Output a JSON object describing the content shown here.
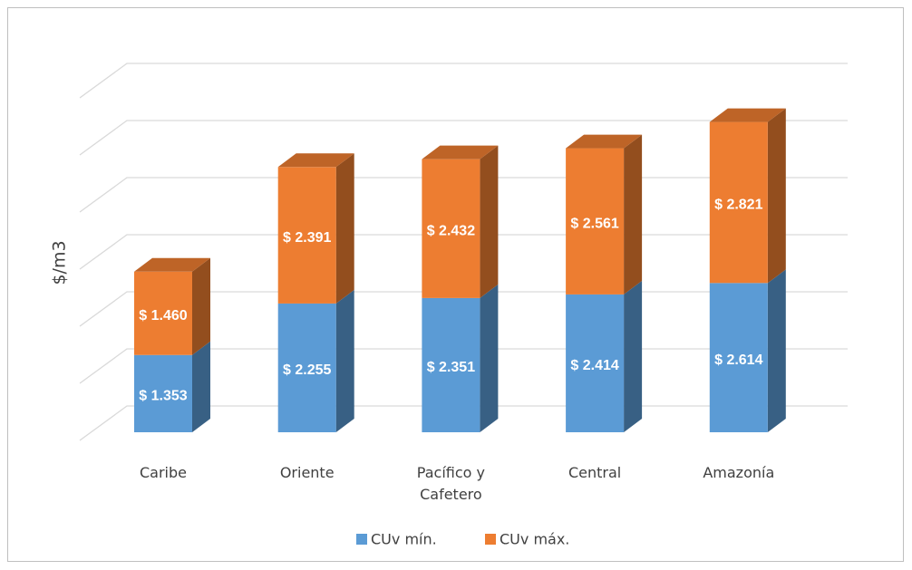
{
  "chart_data": {
    "type": "bar3d_stacked",
    "y_label": "$/m3",
    "categories": [
      "Caribe",
      "Oriente",
      "Pacífico y Cafetero",
      "Central",
      "Amazonía"
    ],
    "series": [
      {
        "name": "CUv mín.",
        "color": "#5b9bd5",
        "values": [
          1353,
          2255,
          2351,
          2414,
          2614
        ],
        "value_labels": [
          "$ 1.353",
          "$ 2.255",
          "$ 2.351",
          "$ 2.414",
          "$ 2.614"
        ]
      },
      {
        "name": "CUv máx.",
        "color": "#ed7d31",
        "values": [
          1460,
          2391,
          2432,
          2561,
          2821
        ],
        "value_labels": [
          "$ 1.460",
          "$ 2.391",
          "$ 2.432",
          "$ 2.561",
          "$ 2.821"
        ]
      }
    ],
    "ylim": [
      0,
      6000
    ],
    "yticks": [
      0,
      1000,
      2000,
      3000,
      4000,
      5000,
      6000
    ],
    "grid": true,
    "legend": "bottom"
  }
}
